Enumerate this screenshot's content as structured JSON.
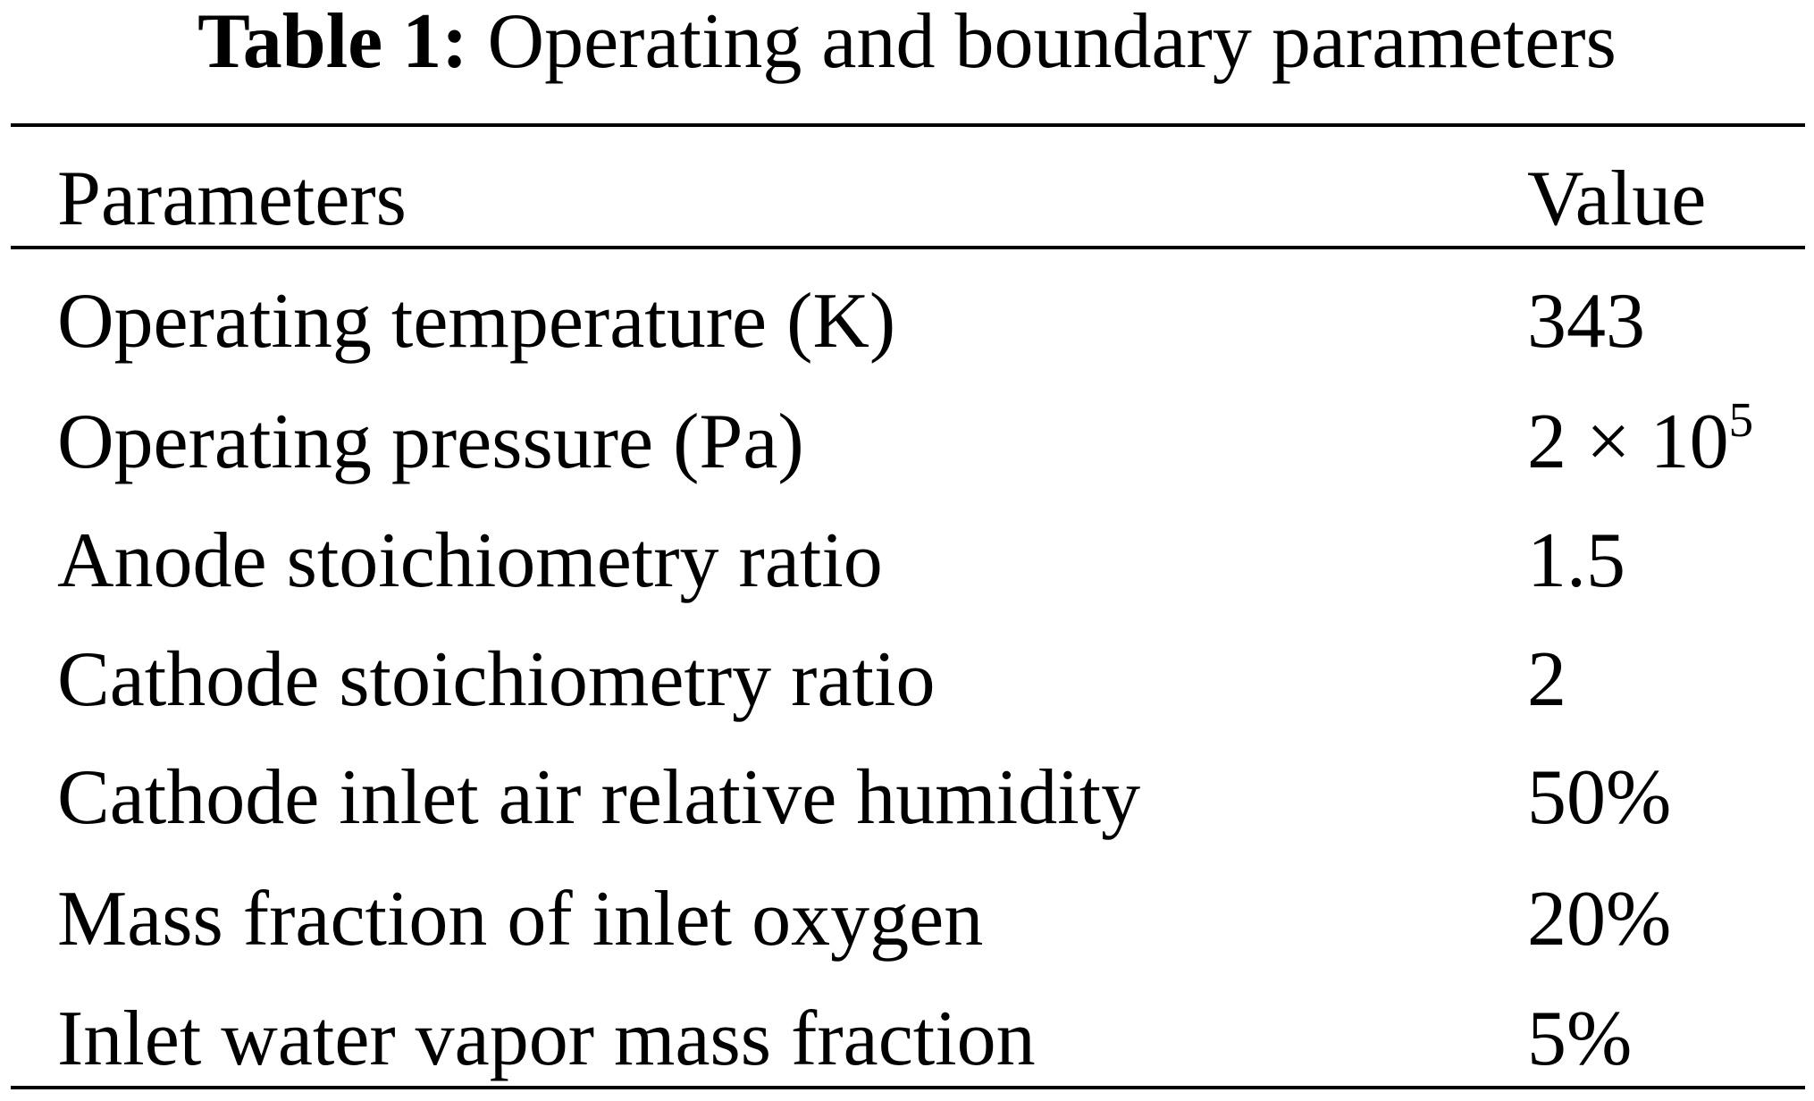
{
  "table": {
    "label": "Table 1:",
    "caption": "Operating and boundary parameters",
    "headers": [
      "Parameters",
      "Value"
    ],
    "rows": [
      {
        "parameter": "Operating temperature (K)",
        "value": "343"
      },
      {
        "parameter": "Operating pressure (Pa)",
        "value": "2 × 10",
        "value_exp": "5"
      },
      {
        "parameter": "Anode stoichiometry ratio",
        "value": "1.5"
      },
      {
        "parameter": "Cathode stoichiometry ratio",
        "value": "2"
      },
      {
        "parameter": "Cathode inlet air relative humidity",
        "value": "50%"
      },
      {
        "parameter": "Mass fraction of inlet oxygen",
        "value": "20%"
      },
      {
        "parameter": "Inlet water vapor mass fraction",
        "value": "5%"
      }
    ]
  }
}
